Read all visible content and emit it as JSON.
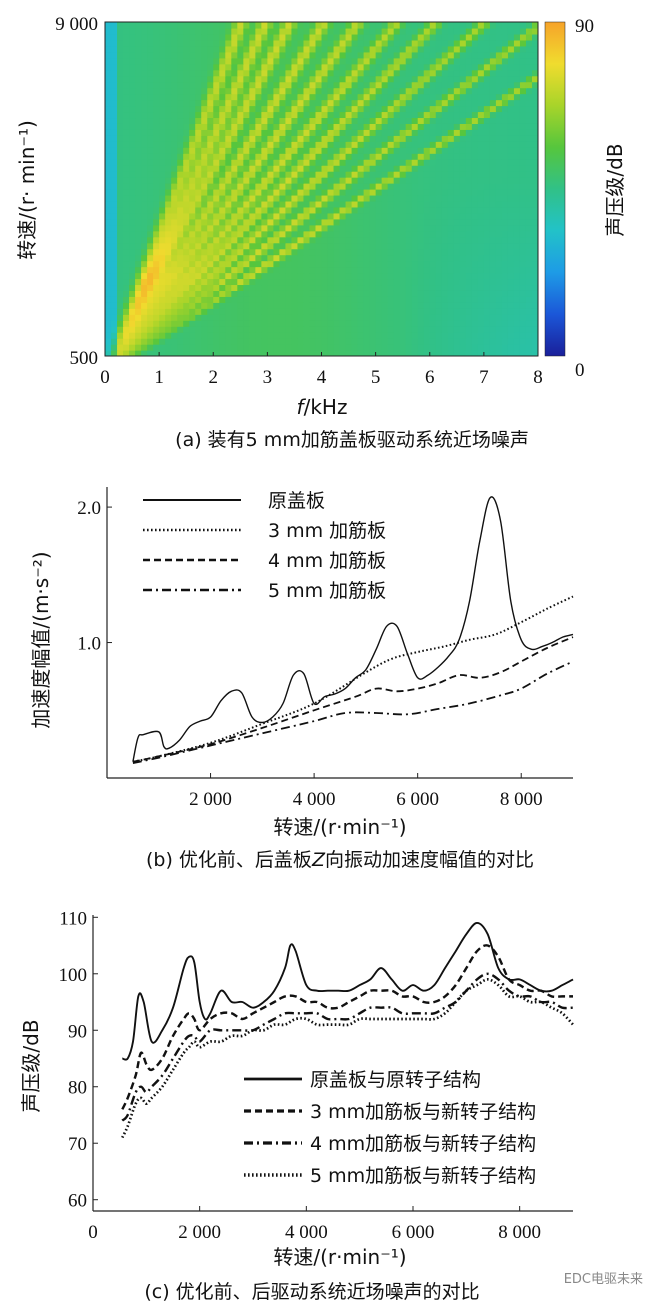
{
  "chart_data": [
    {
      "id": "a",
      "type": "heatmap",
      "caption": "(a) 装有5 mm加筋盖板驱动系统近场噪声",
      "xlabel_italic": "f",
      "xlabel_rest": "/kHz",
      "ylabel": "转速/(r· min⁻¹)",
      "xlim": [
        0,
        8
      ],
      "ylim": [
        500,
        9000
      ],
      "x_ticks": [
        "0",
        "1",
        "2",
        "3",
        "4",
        "5",
        "6",
        "7",
        "8"
      ],
      "y_tick_labels": [
        "9 000",
        "500"
      ],
      "colorbar": {
        "label": "声压级/dB",
        "min": 0,
        "max": 90,
        "tick_labels": [
          "90",
          "0"
        ],
        "colors": [
          "#1a1f9a",
          "#1b57d8",
          "#1e9be6",
          "#22c2c8",
          "#31c187",
          "#56c63d",
          "#a8d42a",
          "#f0dc2e",
          "#f6a32a"
        ]
      },
      "background_level_db": 45,
      "order_lines_kHz_per_rpm": [
        0.00028,
        0.00033,
        0.00038,
        0.00045,
        0.00052,
        0.0006,
        0.00068,
        0.00078,
        0.0009,
        0.00105
      ]
    },
    {
      "id": "b",
      "type": "line",
      "caption_pre": "(b)  优化前、后盖板",
      "caption_var": "Z",
      "caption_post": "向振动加速度幅值的对比",
      "xlabel": "转速/(r·min⁻¹)",
      "ylabel": "加速度幅值/(m·s⁻²)",
      "xlim": [
        0,
        9000
      ],
      "ylim": [
        0,
        2.2
      ],
      "x_ticks": [
        {
          "v": 2000,
          "label": "2 000"
        },
        {
          "v": 4000,
          "label": "4 000"
        },
        {
          "v": 6000,
          "label": "6 000"
        },
        {
          "v": 8000,
          "label": "8 000"
        }
      ],
      "y_ticks": [
        {
          "v": 1.0,
          "label": "1.0"
        },
        {
          "v": 2.0,
          "label": "2.0"
        }
      ],
      "legend_position": "top-left",
      "series": [
        {
          "name": "原盖板",
          "dash": "solid",
          "x": [
            500,
            600,
            700,
            1000,
            1100,
            1200,
            1400,
            1600,
            1800,
            2000,
            2200,
            2400,
            2600,
            2800,
            3000,
            3200,
            3400,
            3600,
            3800,
            4000,
            4200,
            4400,
            4600,
            4800,
            5000,
            5200,
            5400,
            5600,
            5800,
            6000,
            6200,
            6400,
            6600,
            6800,
            7000,
            7200,
            7400,
            7600,
            7800,
            8000,
            8200,
            8400,
            8600,
            8800,
            9000
          ],
          "y": [
            0.12,
            0.3,
            0.32,
            0.34,
            0.23,
            0.22,
            0.28,
            0.38,
            0.42,
            0.45,
            0.57,
            0.64,
            0.63,
            0.45,
            0.41,
            0.45,
            0.55,
            0.76,
            0.77,
            0.55,
            0.6,
            0.62,
            0.66,
            0.74,
            0.8,
            0.95,
            1.12,
            1.12,
            0.92,
            0.74,
            0.76,
            0.82,
            0.9,
            1.02,
            1.3,
            1.75,
            2.07,
            1.9,
            1.3,
            1.02,
            0.95,
            0.97,
            1.0,
            1.04,
            1.06
          ]
        },
        {
          "name": "3 mm 加筋板",
          "dash": "dotted",
          "x": [
            500,
            1000,
            2000,
            3000,
            4000,
            5000,
            5500,
            6000,
            6500,
            7000,
            7500,
            8000,
            8500,
            9000
          ],
          "y": [
            0.12,
            0.16,
            0.26,
            0.4,
            0.55,
            0.78,
            0.88,
            0.93,
            0.97,
            1.02,
            1.06,
            1.15,
            1.25,
            1.34
          ]
        },
        {
          "name": "4 mm 加筋板",
          "dash": "dashed",
          "x": [
            500,
            1000,
            2000,
            3000,
            4000,
            4800,
            5200,
            5600,
            6000,
            6400,
            6800,
            7200,
            7600,
            8000,
            8500,
            9000
          ],
          "y": [
            0.12,
            0.16,
            0.25,
            0.37,
            0.5,
            0.6,
            0.66,
            0.64,
            0.66,
            0.7,
            0.76,
            0.74,
            0.78,
            0.86,
            0.96,
            1.04
          ]
        },
        {
          "name": "5 mm 加筋板",
          "dash": "dashdot",
          "x": [
            500,
            1000,
            2000,
            3000,
            4000,
            4600,
            5200,
            5800,
            6400,
            7000,
            7600,
            8000,
            8500,
            9000
          ],
          "y": [
            0.11,
            0.15,
            0.24,
            0.33,
            0.42,
            0.48,
            0.48,
            0.47,
            0.51,
            0.55,
            0.61,
            0.66,
            0.77,
            0.86
          ]
        }
      ]
    },
    {
      "id": "c",
      "type": "line",
      "caption": "(c) 优化前、后驱动系统近场噪声的对比",
      "xlabel": "转速/(r·min⁻¹)",
      "ylabel": "声压级/dB",
      "xlim": [
        0,
        9000
      ],
      "ylim": [
        58,
        112
      ],
      "x_ticks": [
        {
          "v": 0,
          "label": "0"
        },
        {
          "v": 2000,
          "label": "2 000"
        },
        {
          "v": 4000,
          "label": "4 000"
        },
        {
          "v": 6000,
          "label": "6 000"
        },
        {
          "v": 8000,
          "label": "8 000"
        }
      ],
      "y_ticks": [
        {
          "v": 60,
          "label": "60"
        },
        {
          "v": 70,
          "label": "70"
        },
        {
          "v": 80,
          "label": "80"
        },
        {
          "v": 90,
          "label": "90"
        },
        {
          "v": 100,
          "label": "100"
        },
        {
          "v": 110,
          "label": "110"
        }
      ],
      "legend_position": "bottom-right",
      "series": [
        {
          "name": "原盖板与原转子结构",
          "dash": "solid",
          "x": [
            550,
            650,
            750,
            850,
            950,
            1100,
            1300,
            1500,
            1700,
            1800,
            1900,
            2000,
            2100,
            2200,
            2400,
            2600,
            2800,
            3000,
            3200,
            3400,
            3600,
            3700,
            3800,
            4000,
            4200,
            4400,
            4600,
            4800,
            5000,
            5200,
            5400,
            5600,
            5800,
            6000,
            6200,
            6400,
            6600,
            6800,
            7000,
            7200,
            7400,
            7600,
            7800,
            8000,
            8200,
            8400,
            8600,
            8800,
            9000
          ],
          "y": [
            85,
            85,
            88,
            96,
            95,
            88,
            90,
            94,
            101,
            103,
            102,
            95,
            92,
            93,
            97,
            95,
            95,
            94,
            95,
            97,
            101,
            105,
            104,
            98,
            97,
            97,
            97,
            97,
            98,
            99,
            101,
            99,
            97,
            98,
            97,
            98,
            101,
            104,
            107,
            109,
            107,
            101,
            99,
            99,
            98,
            97,
            97,
            98,
            99
          ]
        },
        {
          "name": "3 mm加筋板与新转子结构",
          "dash": "dashed",
          "x": [
            550,
            650,
            800,
            900,
            1000,
            1100,
            1300,
            1500,
            1700,
            1800,
            1900,
            2000,
            2200,
            2400,
            2600,
            2800,
            3000,
            3200,
            3400,
            3600,
            3800,
            4000,
            4200,
            4400,
            4600,
            4800,
            5000,
            5200,
            5400,
            5600,
            5800,
            6000,
            6200,
            6400,
            6600,
            6800,
            7000,
            7200,
            7400,
            7600,
            7800,
            8000,
            8200,
            8400,
            8600,
            8800,
            9000
          ],
          "y": [
            76,
            78,
            82,
            86,
            84,
            83,
            85,
            89,
            92,
            93,
            92,
            90,
            92,
            93,
            93,
            92,
            93,
            94,
            95,
            96,
            96,
            95,
            95,
            94,
            94,
            95,
            96,
            97,
            97,
            97,
            96,
            96,
            95,
            95,
            96,
            98,
            101,
            104,
            105,
            103,
            99,
            98,
            97,
            97,
            96,
            96,
            96
          ]
        },
        {
          "name": "4 mm加筋板与新转子结构",
          "dash": "dashdot",
          "x": [
            550,
            650,
            800,
            900,
            1000,
            1100,
            1300,
            1500,
            1700,
            1800,
            1900,
            2000,
            2200,
            2400,
            2600,
            2800,
            3000,
            3200,
            3400,
            3600,
            3800,
            4000,
            4200,
            4400,
            4600,
            4800,
            5000,
            5200,
            5400,
            5600,
            5800,
            6000,
            6200,
            6400,
            6600,
            6800,
            7000,
            7200,
            7400,
            7600,
            7800,
            8000,
            8200,
            8400,
            8600,
            8800,
            9000
          ],
          "y": [
            74,
            75,
            79,
            80,
            79,
            80,
            82,
            85,
            88,
            89,
            89,
            88,
            90,
            90,
            90,
            90,
            90,
            91,
            92,
            93,
            93,
            93,
            93,
            92,
            92,
            92,
            93,
            94,
            94,
            94,
            93,
            93,
            93,
            93,
            94,
            95,
            97,
            99,
            100,
            99,
            97,
            96,
            96,
            95,
            95,
            94,
            94
          ]
        },
        {
          "name": "5 mm加筋板与新转子结构",
          "dash": "dotted",
          "x": [
            550,
            650,
            800,
            900,
            1000,
            1100,
            1300,
            1500,
            1700,
            1800,
            1900,
            2000,
            2200,
            2400,
            2600,
            2800,
            3000,
            3200,
            3400,
            3600,
            3800,
            4000,
            4200,
            4400,
            4600,
            4800,
            5000,
            5200,
            5400,
            5600,
            5800,
            6000,
            6200,
            6400,
            6600,
            6800,
            7000,
            7200,
            7400,
            7600,
            7800,
            8000,
            8200,
            8400,
            8600,
            8800,
            9000
          ],
          "y": [
            71,
            73,
            77,
            78,
            77,
            78,
            80,
            83,
            86,
            87,
            88,
            87,
            88,
            88,
            89,
            89,
            90,
            90,
            91,
            91,
            92,
            92,
            91,
            91,
            91,
            91,
            92,
            92,
            92,
            92,
            92,
            92,
            92,
            92,
            93,
            95,
            97,
            98,
            99,
            98,
            96,
            96,
            95,
            95,
            94,
            93,
            91
          ]
        }
      ]
    }
  ],
  "watermark": "EDC电驱未来"
}
